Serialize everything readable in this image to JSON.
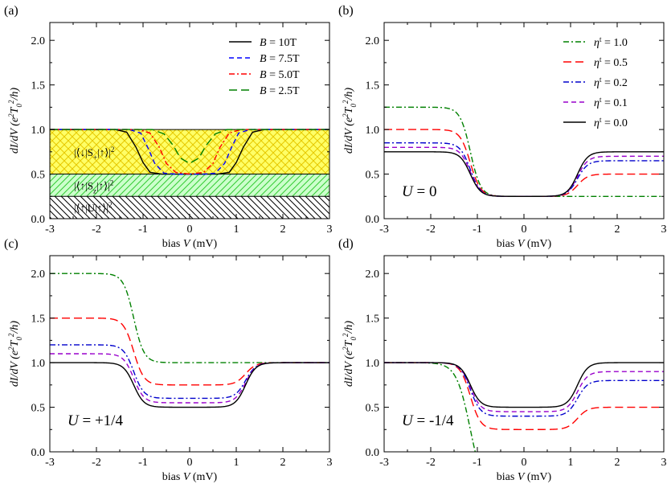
{
  "page": {
    "background": "#ffffff"
  },
  "chart_data": [
    {
      "type": "line",
      "panel": "(a)",
      "xlabel_parts": [
        "bias ",
        "V",
        " (mV)"
      ],
      "ylabel_parts": [
        "dI/dV (e",
        "2",
        "T",
        "0",
        "2",
        "/h)"
      ],
      "xlim": [
        -3,
        3
      ],
      "ylim": [
        0,
        2.2
      ],
      "xticks": [
        "-3",
        "-2",
        "-1",
        "0",
        "1",
        "2",
        "3"
      ],
      "yticks": [
        "0.0",
        "0.5",
        "1.0",
        "1.5",
        "2.0"
      ],
      "yaxis_labeled": true,
      "legend_position": "top-right",
      "series": [
        {
          "name": "B = 10T",
          "name_parts": [
            "B",
            " = 10T"
          ],
          "color": "#000000",
          "dash": "solid",
          "width_mV": 1.05,
          "points": [
            [
              -3,
              1.0
            ],
            [
              -1.6,
              1.0
            ],
            [
              -1.35,
              0.97
            ],
            [
              -1.15,
              0.8
            ],
            [
              -1.0,
              0.63
            ],
            [
              -0.85,
              0.52
            ],
            [
              -0.6,
              0.5
            ],
            [
              0,
              0.5
            ],
            [
              0.6,
              0.5
            ],
            [
              0.85,
              0.52
            ],
            [
              1.0,
              0.63
            ],
            [
              1.15,
              0.8
            ],
            [
              1.35,
              0.97
            ],
            [
              1.6,
              1.0
            ],
            [
              3,
              1.0
            ]
          ]
        },
        {
          "name": "B = 7.5T",
          "name_parts": [
            "B",
            " = 7.5T"
          ],
          "color": "#0000ff",
          "dash": "dash",
          "width_mV": 0.8,
          "points": [
            [
              -3,
              1.0
            ],
            [
              -1.3,
              1.0
            ],
            [
              -1.05,
              0.96
            ],
            [
              -0.9,
              0.8
            ],
            [
              -0.75,
              0.62
            ],
            [
              -0.55,
              0.51
            ],
            [
              -0.3,
              0.5
            ],
            [
              0,
              0.5
            ],
            [
              0.3,
              0.5
            ],
            [
              0.55,
              0.51
            ],
            [
              0.75,
              0.62
            ],
            [
              0.9,
              0.8
            ],
            [
              1.05,
              0.96
            ],
            [
              1.3,
              1.0
            ],
            [
              3,
              1.0
            ]
          ]
        },
        {
          "name": "B = 5.0T",
          "name_parts": [
            "B",
            " = 5.0T"
          ],
          "color": "#ff0000",
          "dash": "dashdot",
          "width_mV": 0.55,
          "points": [
            [
              -3,
              1.0
            ],
            [
              -1.1,
              1.0
            ],
            [
              -0.85,
              0.96
            ],
            [
              -0.65,
              0.8
            ],
            [
              -0.5,
              0.62
            ],
            [
              -0.3,
              0.52
            ],
            [
              0,
              0.5
            ],
            [
              0.3,
              0.52
            ],
            [
              0.5,
              0.62
            ],
            [
              0.65,
              0.8
            ],
            [
              0.85,
              0.96
            ],
            [
              1.1,
              1.0
            ],
            [
              3,
              1.0
            ]
          ]
        },
        {
          "name": "B = 2.5T",
          "name_parts": [
            "B",
            " = 2.5T"
          ],
          "color": "#008000",
          "dash": "longdash",
          "width_mV": 0.3,
          "points": [
            [
              -3,
              1.0
            ],
            [
              -0.8,
              1.0
            ],
            [
              -0.55,
              0.95
            ],
            [
              -0.35,
              0.82
            ],
            [
              -0.2,
              0.68
            ],
            [
              0,
              0.62
            ],
            [
              0.2,
              0.68
            ],
            [
              0.35,
              0.82
            ],
            [
              0.55,
              0.95
            ],
            [
              0.8,
              1.0
            ],
            [
              3,
              1.0
            ]
          ]
        }
      ],
      "regions": [
        {
          "from": 0.5,
          "to": 1.0,
          "pattern": "crosshatch",
          "fill": "#ffff66",
          "hatch": "#e6c800",
          "label_parts": [
            "|⟨↓|S",
            "+",
            "|↑⟩|",
            "2"
          ]
        },
        {
          "from": 0.25,
          "to": 0.5,
          "pattern": "diagonal",
          "fill": "#ccffcc",
          "hatch": "#33cc33",
          "label_parts": [
            "|⟨↑|S",
            "z",
            "|↑⟩|",
            "2"
          ]
        },
        {
          "from": 0.0,
          "to": 0.25,
          "pattern": "backdiagonal",
          "fill": "#ffffff",
          "hatch": "#000000",
          "label_parts": [
            "|⟨↑|U|↑⟩|",
            "",
            "",
            "2"
          ]
        }
      ]
    },
    {
      "type": "line",
      "panel": "(b)",
      "xlabel_parts": [
        "bias ",
        "V",
        " (mV)"
      ],
      "ylabel_parts": [
        "dI/dV (e",
        "2",
        "T",
        "0",
        "2",
        "/h)"
      ],
      "xlim": [
        -3,
        3
      ],
      "ylim": [
        0,
        2.2
      ],
      "xticks": [
        "-3",
        "-2",
        "-1",
        "0",
        "1",
        "2",
        "3"
      ],
      "yticks": [
        "0.0",
        "0.5",
        "1.0",
        "1.5",
        "2.0"
      ],
      "yaxis_labeled": true,
      "legend_position": "top-right",
      "annotation": "U = 0",
      "annotation_parts": [
        "U",
        " = 0"
      ],
      "series": [
        {
          "name": "η^t = 1.0",
          "name_parts": [
            "η",
            "t",
            " = 1.0"
          ],
          "color": "#008000",
          "dash": "dashdot",
          "left": 1.25,
          "right": 0.25,
          "mid": 0.25
        },
        {
          "name": "η^t = 0.5",
          "name_parts": [
            "η",
            "t",
            " = 0.5"
          ],
          "color": "#ff0000",
          "dash": "longdash",
          "left": 1.0,
          "right": 0.5,
          "mid": 0.25
        },
        {
          "name": "η^t = 0.2",
          "name_parts": [
            "η",
            "t",
            " = 0.2"
          ],
          "color": "#0000cc",
          "dash": "dashdot",
          "left": 0.85,
          "right": 0.65,
          "mid": 0.25
        },
        {
          "name": "η^t = 0.1",
          "name_parts": [
            "η",
            "t",
            " = 0.1"
          ],
          "color": "#9900cc",
          "dash": "dash",
          "left": 0.8,
          "right": 0.7,
          "mid": 0.25
        },
        {
          "name": "η^t = 0.0",
          "name_parts": [
            "η",
            "t",
            " = 0.0"
          ],
          "color": "#000000",
          "dash": "solid",
          "left": 0.75,
          "right": 0.75,
          "mid": 0.25
        }
      ]
    },
    {
      "type": "line",
      "panel": "(c)",
      "xlabel_parts": [
        "bias ",
        "V",
        " (mV)"
      ],
      "ylabel_parts": [
        "dI/dV (e",
        "2",
        "T",
        "0",
        "2",
        "/h)"
      ],
      "xlim": [
        -3,
        3
      ],
      "ylim": [
        0,
        2.2
      ],
      "xticks": [
        "-3",
        "-2",
        "-1",
        "0",
        "1",
        "2",
        "3"
      ],
      "yticks": [
        "0.0",
        "0.5",
        "1.0",
        "1.5",
        "2.0"
      ],
      "yaxis_labeled": true,
      "annotation": "U = +1/4",
      "annotation_parts": [
        "U",
        " = +1/4"
      ],
      "series": [
        {
          "color": "#008000",
          "dash": "dashdot",
          "left": 2.0,
          "mid": 1.0,
          "right": 1.0
        },
        {
          "color": "#ff0000",
          "dash": "longdash",
          "left": 1.5,
          "mid": 0.75,
          "right": 1.0
        },
        {
          "color": "#0000cc",
          "dash": "dashdot",
          "left": 1.2,
          "mid": 0.6,
          "right": 1.0
        },
        {
          "color": "#9900cc",
          "dash": "dash",
          "left": 1.1,
          "mid": 0.55,
          "right": 1.0
        },
        {
          "color": "#000000",
          "dash": "solid",
          "left": 1.0,
          "mid": 0.5,
          "right": 1.0
        }
      ]
    },
    {
      "type": "line",
      "panel": "(d)",
      "xlabel_parts": [
        "bias ",
        "V",
        " (mV)"
      ],
      "ylabel_parts": [
        "dI/dV (e",
        "2",
        "T",
        "0",
        "2",
        "/h)"
      ],
      "xlim": [
        -3,
        3
      ],
      "ylim": [
        0,
        2.2
      ],
      "xticks": [
        "-3",
        "-2",
        "-1",
        "0",
        "1",
        "2",
        "3"
      ],
      "yticks": [
        "0.0",
        "0.5",
        "1.0",
        "1.5",
        "2.0"
      ],
      "yaxis_labeled": true,
      "annotation": "U = -1/4",
      "annotation_parts": [
        "U",
        " = -1/4"
      ],
      "series": [
        {
          "color": "#008000",
          "dash": "dashdot",
          "left": 1.0,
          "mid": 0.0,
          "right": 0.0,
          "clip_after": -0.65
        },
        {
          "color": "#ff0000",
          "dash": "longdash",
          "left": 1.0,
          "mid": 0.25,
          "right": 0.5
        },
        {
          "color": "#0000cc",
          "dash": "dashdot",
          "left": 1.0,
          "mid": 0.4,
          "right": 0.8
        },
        {
          "color": "#9900cc",
          "dash": "dash",
          "left": 1.0,
          "mid": 0.45,
          "right": 0.9
        },
        {
          "color": "#000000",
          "dash": "solid",
          "left": 1.0,
          "mid": 0.5,
          "right": 1.0
        }
      ]
    }
  ]
}
